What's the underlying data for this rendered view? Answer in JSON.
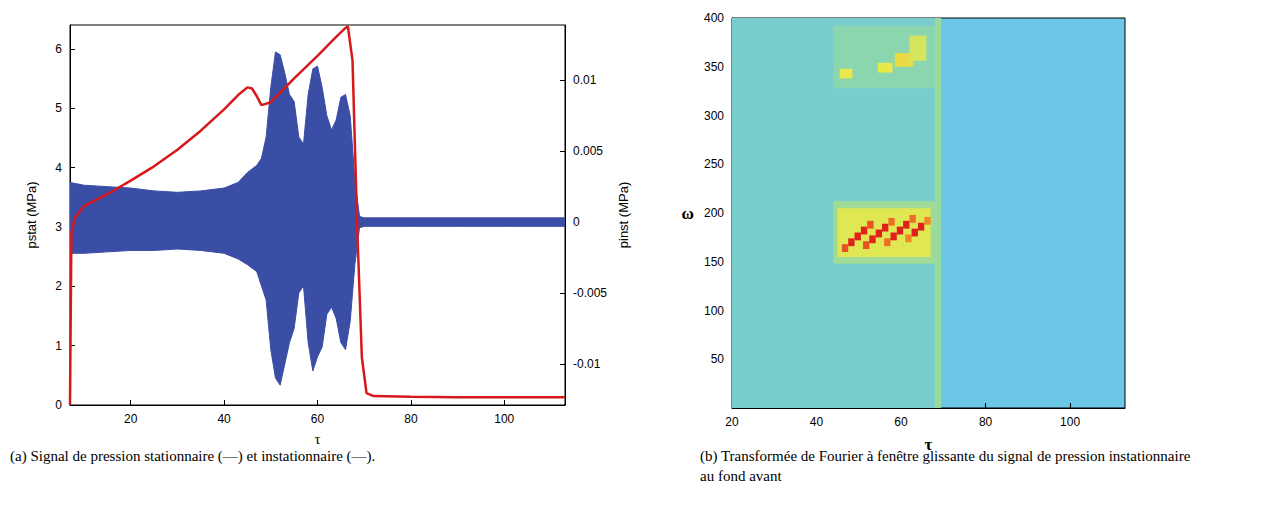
{
  "chart_data": [
    {
      "type": "line",
      "caption": "(a) Signal de pression stationnaire (—) et instationnaire (—).",
      "x_label": "τ",
      "y_label": "pstat (MPa)",
      "y2_label": "pinst (MPa)",
      "xlim": [
        7,
        113
      ],
      "xticks": [
        20,
        40,
        60,
        80,
        100
      ],
      "ylim": [
        0,
        6.4
      ],
      "yticks": [
        0,
        1,
        2,
        3,
        4,
        5,
        6
      ],
      "y2lim": [
        -0.0129,
        0.0139
      ],
      "y2ticks": [
        -0.01,
        -0.005,
        0,
        0.005,
        0.01
      ],
      "grid": false,
      "series": [
        {
          "type": "band",
          "axis": "y2",
          "color": "#3b4ea6",
          "x": [
            7,
            10,
            15,
            20,
            25,
            30,
            35,
            40,
            43,
            45,
            47,
            48,
            49,
            50,
            51,
            52,
            53,
            54,
            55,
            56,
            57,
            58,
            59,
            60,
            61,
            62,
            63,
            64,
            65,
            66,
            67,
            68,
            69,
            70,
            80,
            90,
            100,
            113
          ],
          "upper": [
            0.0028,
            0.0026,
            0.0025,
            0.0024,
            0.0022,
            0.0021,
            0.0022,
            0.0024,
            0.0028,
            0.0035,
            0.004,
            0.0045,
            0.006,
            0.0095,
            0.012,
            0.0118,
            0.0105,
            0.009,
            0.0085,
            0.006,
            0.0055,
            0.009,
            0.0108,
            0.011,
            0.0095,
            0.0075,
            0.0065,
            0.0072,
            0.0088,
            0.009,
            0.0075,
            0.003,
            0.0004,
            0.0003,
            0.0003,
            0.0003,
            0.0003,
            0.0003
          ],
          "lower": [
            -0.0022,
            -0.0022,
            -0.0021,
            -0.002,
            -0.002,
            -0.0019,
            -0.002,
            -0.0022,
            -0.0026,
            -0.003,
            -0.0035,
            -0.0045,
            -0.0055,
            -0.009,
            -0.011,
            -0.0115,
            -0.01,
            -0.0085,
            -0.0075,
            -0.005,
            -0.0045,
            -0.0085,
            -0.0105,
            -0.0095,
            -0.0088,
            -0.0065,
            -0.006,
            -0.0068,
            -0.0085,
            -0.009,
            -0.007,
            -0.003,
            -0.0004,
            -0.0003,
            -0.0003,
            -0.0003,
            -0.0003,
            -0.0003
          ]
        },
        {
          "type": "line",
          "color": "#d7191c",
          "x": [
            7,
            7.3,
            8,
            10,
            15,
            20,
            25,
            30,
            35,
            40,
            43,
            45,
            46,
            47,
            48,
            50,
            55,
            60,
            64,
            66,
            66.5,
            67.5,
            68.5,
            69.5,
            70.5,
            72,
            80,
            90,
            100,
            113
          ],
          "values": [
            0,
            2.9,
            3.15,
            3.35,
            3.55,
            3.78,
            4.02,
            4.3,
            4.62,
            4.98,
            5.22,
            5.35,
            5.33,
            5.2,
            5.05,
            5.1,
            5.5,
            5.88,
            6.2,
            6.35,
            6.38,
            5.8,
            3.0,
            0.8,
            0.2,
            0.15,
            0.14,
            0.13,
            0.13,
            0.13
          ]
        }
      ]
    },
    {
      "type": "heatmap",
      "caption": "(b) Transformée de Fourier à fenêtre glissante du signal de pression instationnaire au fond avant",
      "x_label": "τ",
      "y_label": "ω",
      "xlim": [
        20,
        113
      ],
      "xticks": [
        20,
        40,
        60,
        80,
        100
      ],
      "ylim": [
        0,
        400
      ],
      "yticks": [
        50,
        100,
        150,
        200,
        250,
        300,
        350,
        400
      ],
      "grid": false,
      "value_range": [
        0,
        1
      ],
      "color_scale": [
        "#6cc6e6",
        "#8fd8a8",
        "#e6e84c",
        "#f5a02a",
        "#e0201c"
      ],
      "cells": [
        [
          20,
          69,
          0,
          400,
          0.1
        ],
        [
          68,
          69.5,
          0,
          400,
          0.28
        ],
        [
          44,
          68,
          328,
          392,
          0.22
        ],
        [
          45.5,
          48.5,
          338,
          348,
          0.5
        ],
        [
          54.5,
          58,
          344,
          354,
          0.5
        ],
        [
          58.5,
          63,
          350,
          364,
          0.55
        ],
        [
          62,
          66,
          356,
          382,
          0.45
        ],
        [
          44,
          68,
          148,
          212,
          0.3
        ],
        [
          45,
          67,
          155,
          205,
          0.48
        ],
        [
          46,
          47.5,
          160,
          168,
          0.9
        ],
        [
          47.5,
          49,
          166,
          174,
          1
        ],
        [
          49,
          50.5,
          172,
          180,
          1
        ],
        [
          50.5,
          52,
          178,
          186,
          1
        ],
        [
          52,
          53.5,
          184,
          192,
          0.9
        ],
        [
          51,
          52.5,
          163,
          171,
          0.9
        ],
        [
          52.5,
          54,
          169,
          177,
          1
        ],
        [
          54,
          55.5,
          175,
          183,
          1
        ],
        [
          55.5,
          57,
          181,
          189,
          1
        ],
        [
          57,
          58.5,
          187,
          195,
          0.85
        ],
        [
          56,
          57.5,
          166,
          174,
          0.85
        ],
        [
          57.5,
          59,
          172,
          180,
          1
        ],
        [
          59,
          60.5,
          178,
          186,
          1
        ],
        [
          60.5,
          62,
          184,
          192,
          1
        ],
        [
          62,
          63.5,
          190,
          198,
          0.85
        ],
        [
          61,
          62.5,
          170,
          178,
          0.8
        ],
        [
          62.5,
          64,
          176,
          184,
          1
        ],
        [
          64,
          65.5,
          182,
          190,
          1
        ],
        [
          65.5,
          67,
          188,
          196,
          0.8
        ]
      ]
    }
  ]
}
